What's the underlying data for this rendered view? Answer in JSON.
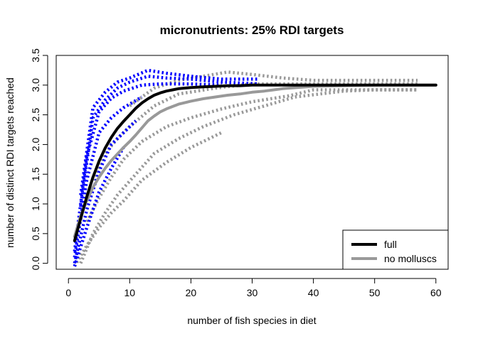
{
  "chart_data": {
    "type": "line",
    "title": "micronutrients: 25% RDI targets",
    "xlabel": "number of fish species in diet",
    "ylabel": "number of distinct RDI targets reached",
    "xlim": [
      -2,
      62
    ],
    "ylim": [
      -0.1,
      3.5
    ],
    "xticks": [
      0,
      10,
      20,
      30,
      40,
      50,
      60
    ],
    "yticks": [
      0.0,
      0.5,
      1.0,
      1.5,
      2.0,
      2.5,
      3.0,
      3.5
    ],
    "xtick_labels": [
      "0",
      "10",
      "20",
      "30",
      "40",
      "50",
      "60"
    ],
    "ytick_labels": [
      "0.0",
      "0.5",
      "1.0",
      "1.5",
      "2.0",
      "2.5",
      "3.0",
      "3.5"
    ],
    "grid": false,
    "legend_position": "bottom-right",
    "colors": {
      "full_mean": "#000000",
      "full_sims": "#0000ff",
      "nomoll_mean": "#999999",
      "nomoll_sims": "#999999"
    },
    "series": [
      {
        "name": "full",
        "style": "solid-thick",
        "x": [
          1,
          2,
          3,
          4,
          5,
          6,
          7,
          8,
          9,
          10,
          11,
          12,
          13,
          14,
          15,
          16,
          17,
          18,
          19,
          20,
          22,
          24,
          26,
          28,
          30,
          35,
          40,
          50,
          60
        ],
        "y": [
          0.38,
          0.75,
          1.12,
          1.45,
          1.72,
          1.94,
          2.12,
          2.27,
          2.39,
          2.5,
          2.61,
          2.7,
          2.77,
          2.83,
          2.87,
          2.9,
          2.92,
          2.94,
          2.95,
          2.96,
          2.97,
          2.98,
          2.99,
          2.99,
          3.0,
          3.0,
          3.0,
          3.0,
          3.0
        ]
      },
      {
        "name": "no molluscs",
        "style": "solid-thick",
        "x": [
          1,
          2,
          3,
          4,
          5,
          6,
          7,
          8,
          9,
          10,
          11,
          12,
          13,
          14,
          15,
          16,
          18,
          20,
          22,
          24,
          26,
          28,
          30,
          32,
          35,
          40,
          45,
          50,
          55,
          60
        ],
        "y": [
          0.45,
          0.8,
          1.05,
          1.28,
          1.45,
          1.6,
          1.73,
          1.84,
          1.95,
          2.05,
          2.16,
          2.28,
          2.4,
          2.48,
          2.55,
          2.6,
          2.68,
          2.73,
          2.77,
          2.8,
          2.83,
          2.85,
          2.88,
          2.9,
          2.94,
          2.98,
          2.99,
          3.0,
          3.0,
          3.0
        ]
      }
    ],
    "simulation_bands": [
      {
        "group": "full",
        "lines": [
          {
            "x": [
              2,
              4,
              6,
              8,
              10,
              13,
              16,
              20,
              25,
              31
            ],
            "y": [
              1.15,
              2.62,
              2.88,
              3.05,
              3.12,
              3.25,
              3.2,
              3.15,
              3.1,
              3.1
            ]
          },
          {
            "x": [
              2,
              4,
              6,
              8,
              10,
              13,
              16,
              20,
              25,
              31
            ],
            "y": [
              0.95,
              2.45,
              2.75,
              2.95,
              3.05,
              3.15,
              3.12,
              3.1,
              3.05,
              3.02
            ]
          },
          {
            "x": [
              1,
              3,
              5,
              7,
              9,
              12,
              15,
              20,
              25
            ],
            "y": [
              0.2,
              1.8,
              2.55,
              2.78,
              2.9,
              3.0,
              3.02,
              3.02,
              3.0
            ]
          },
          {
            "x": [
              1,
              3,
              5,
              7,
              9,
              12
            ],
            "y": [
              0.1,
              1.4,
              2.2,
              2.45,
              2.62,
              2.8
            ]
          },
          {
            "x": [
              1,
              3,
              5,
              7,
              9,
              11
            ],
            "y": [
              0.0,
              0.9,
              1.55,
              2.0,
              2.2,
              2.4
            ]
          },
          {
            "x": [
              1,
              3,
              5,
              7,
              9
            ],
            "y": [
              -0.05,
              0.6,
              1.2,
              1.6,
              1.95
            ]
          }
        ]
      },
      {
        "group": "no molluscs",
        "lines": [
          {
            "x": [
              10,
              14,
              18,
              22,
              26,
              30,
              35,
              40,
              45,
              50,
              57
            ],
            "y": [
              2.65,
              2.95,
              3.08,
              3.15,
              3.22,
              3.18,
              3.12,
              3.08,
              3.08,
              3.08,
              3.08
            ]
          },
          {
            "x": [
              4,
              6,
              8,
              10,
              14,
              18,
              24,
              30,
              36,
              45,
              57
            ],
            "y": [
              1.4,
              1.85,
              2.1,
              2.3,
              2.65,
              2.85,
              2.95,
              3.02,
              3.02,
              3.02,
              3.02
            ]
          },
          {
            "x": [
              3,
              5,
              7,
              9,
              12,
              16,
              20,
              25,
              30,
              36,
              40,
              50,
              57
            ],
            "y": [
              0.7,
              1.1,
              1.45,
              1.75,
              2.05,
              2.3,
              2.45,
              2.6,
              2.72,
              2.82,
              2.92,
              2.92,
              2.92
            ]
          },
          {
            "x": [
              2,
              4,
              6,
              8,
              11,
              14,
              18,
              22,
              27,
              32,
              37,
              45,
              50,
              57
            ],
            "y": [
              0.0,
              0.5,
              0.85,
              1.15,
              1.5,
              1.85,
              2.1,
              2.3,
              2.5,
              2.65,
              2.8,
              2.9,
              2.92,
              2.92
            ]
          },
          {
            "x": [
              1,
              3,
              5,
              7,
              9,
              12,
              16,
              20,
              25
            ],
            "y": [
              -0.05,
              0.3,
              0.6,
              0.85,
              1.05,
              1.4,
              1.7,
              1.95,
              2.2
            ]
          }
        ]
      }
    ]
  }
}
